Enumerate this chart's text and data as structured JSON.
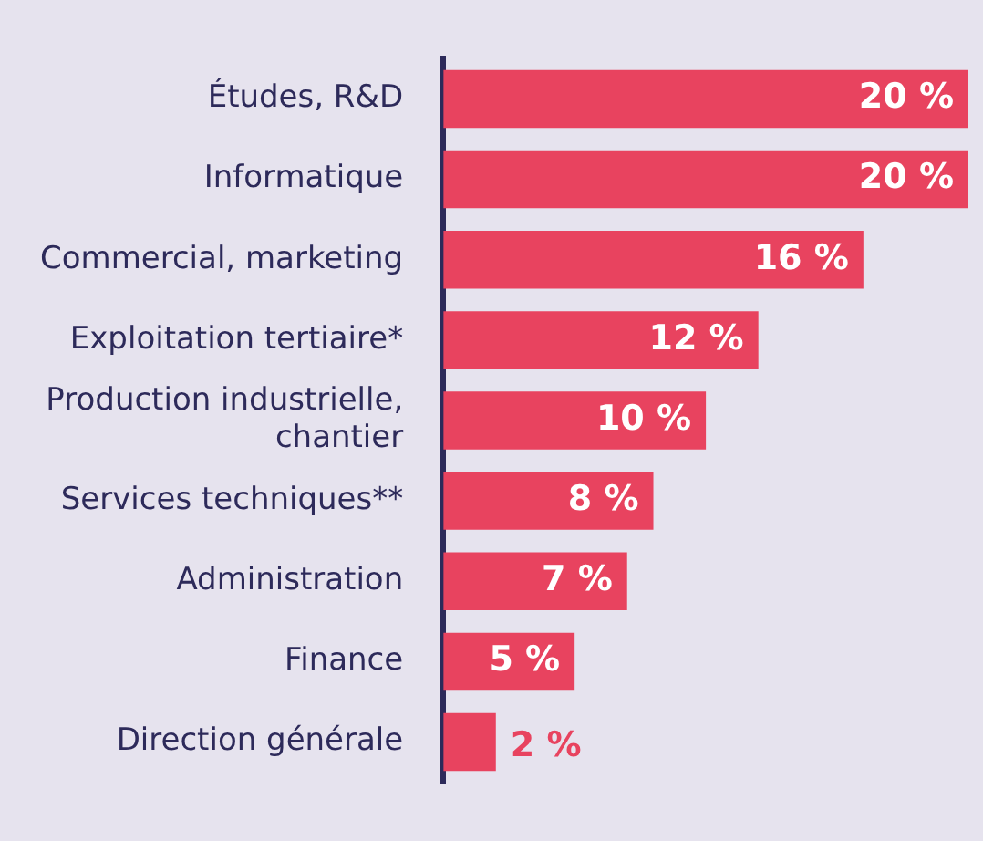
{
  "chart_data": {
    "type": "bar",
    "orientation": "horizontal",
    "categories": [
      "Études, R&D",
      "Informatique",
      "Commercial, marketing",
      "Exploitation tertiaire*",
      "Production industrielle, chantier",
      "Services techniques**",
      "Administration",
      "Finance",
      "Direction générale"
    ],
    "values": [
      20,
      20,
      16,
      12,
      10,
      8,
      7,
      5,
      2
    ],
    "value_labels": [
      "20 %",
      "20 %",
      "16 %",
      "12 %",
      "10 %",
      "8 %",
      "7 %",
      "5 %",
      "2 %"
    ],
    "color": "#e8435f",
    "grid": false,
    "legend": false
  }
}
